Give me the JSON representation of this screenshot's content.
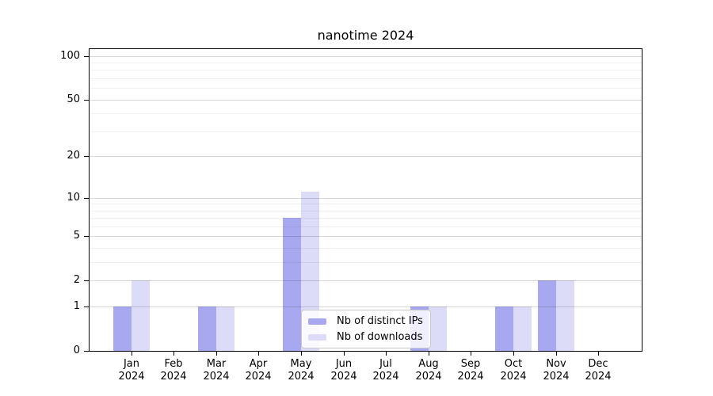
{
  "chart_data": {
    "type": "bar",
    "title": "nanotime 2024",
    "categories": [
      "Jan",
      "Feb",
      "Mar",
      "Apr",
      "May",
      "Jun",
      "Jul",
      "Aug",
      "Sep",
      "Oct",
      "Nov",
      "Dec"
    ],
    "category_year": "2024",
    "series": [
      {
        "name": "Nb of distinct IPs",
        "color": "#a8a8f0",
        "values": [
          1,
          0,
          1,
          0,
          7,
          0,
          0,
          1,
          0,
          1,
          2,
          0
        ]
      },
      {
        "name": "Nb of downloads",
        "color": "#dcdcf8",
        "values": [
          2,
          0,
          1,
          0,
          11,
          0,
          0,
          1,
          0,
          1,
          2,
          0
        ]
      }
    ],
    "y_scale": "log10(1+y)",
    "y_tick_labels": [
      0,
      1,
      2,
      5,
      10,
      20,
      50,
      100
    ],
    "y_minor_gridlines": [
      3,
      4,
      6,
      7,
      8,
      9,
      30,
      40,
      60,
      70,
      80,
      90
    ],
    "ylim": [
      0,
      112
    ],
    "grid": "horizontal",
    "legend_position": "inside-bottom-center",
    "background_color": "#ffffff",
    "axis_color": "#000000"
  }
}
